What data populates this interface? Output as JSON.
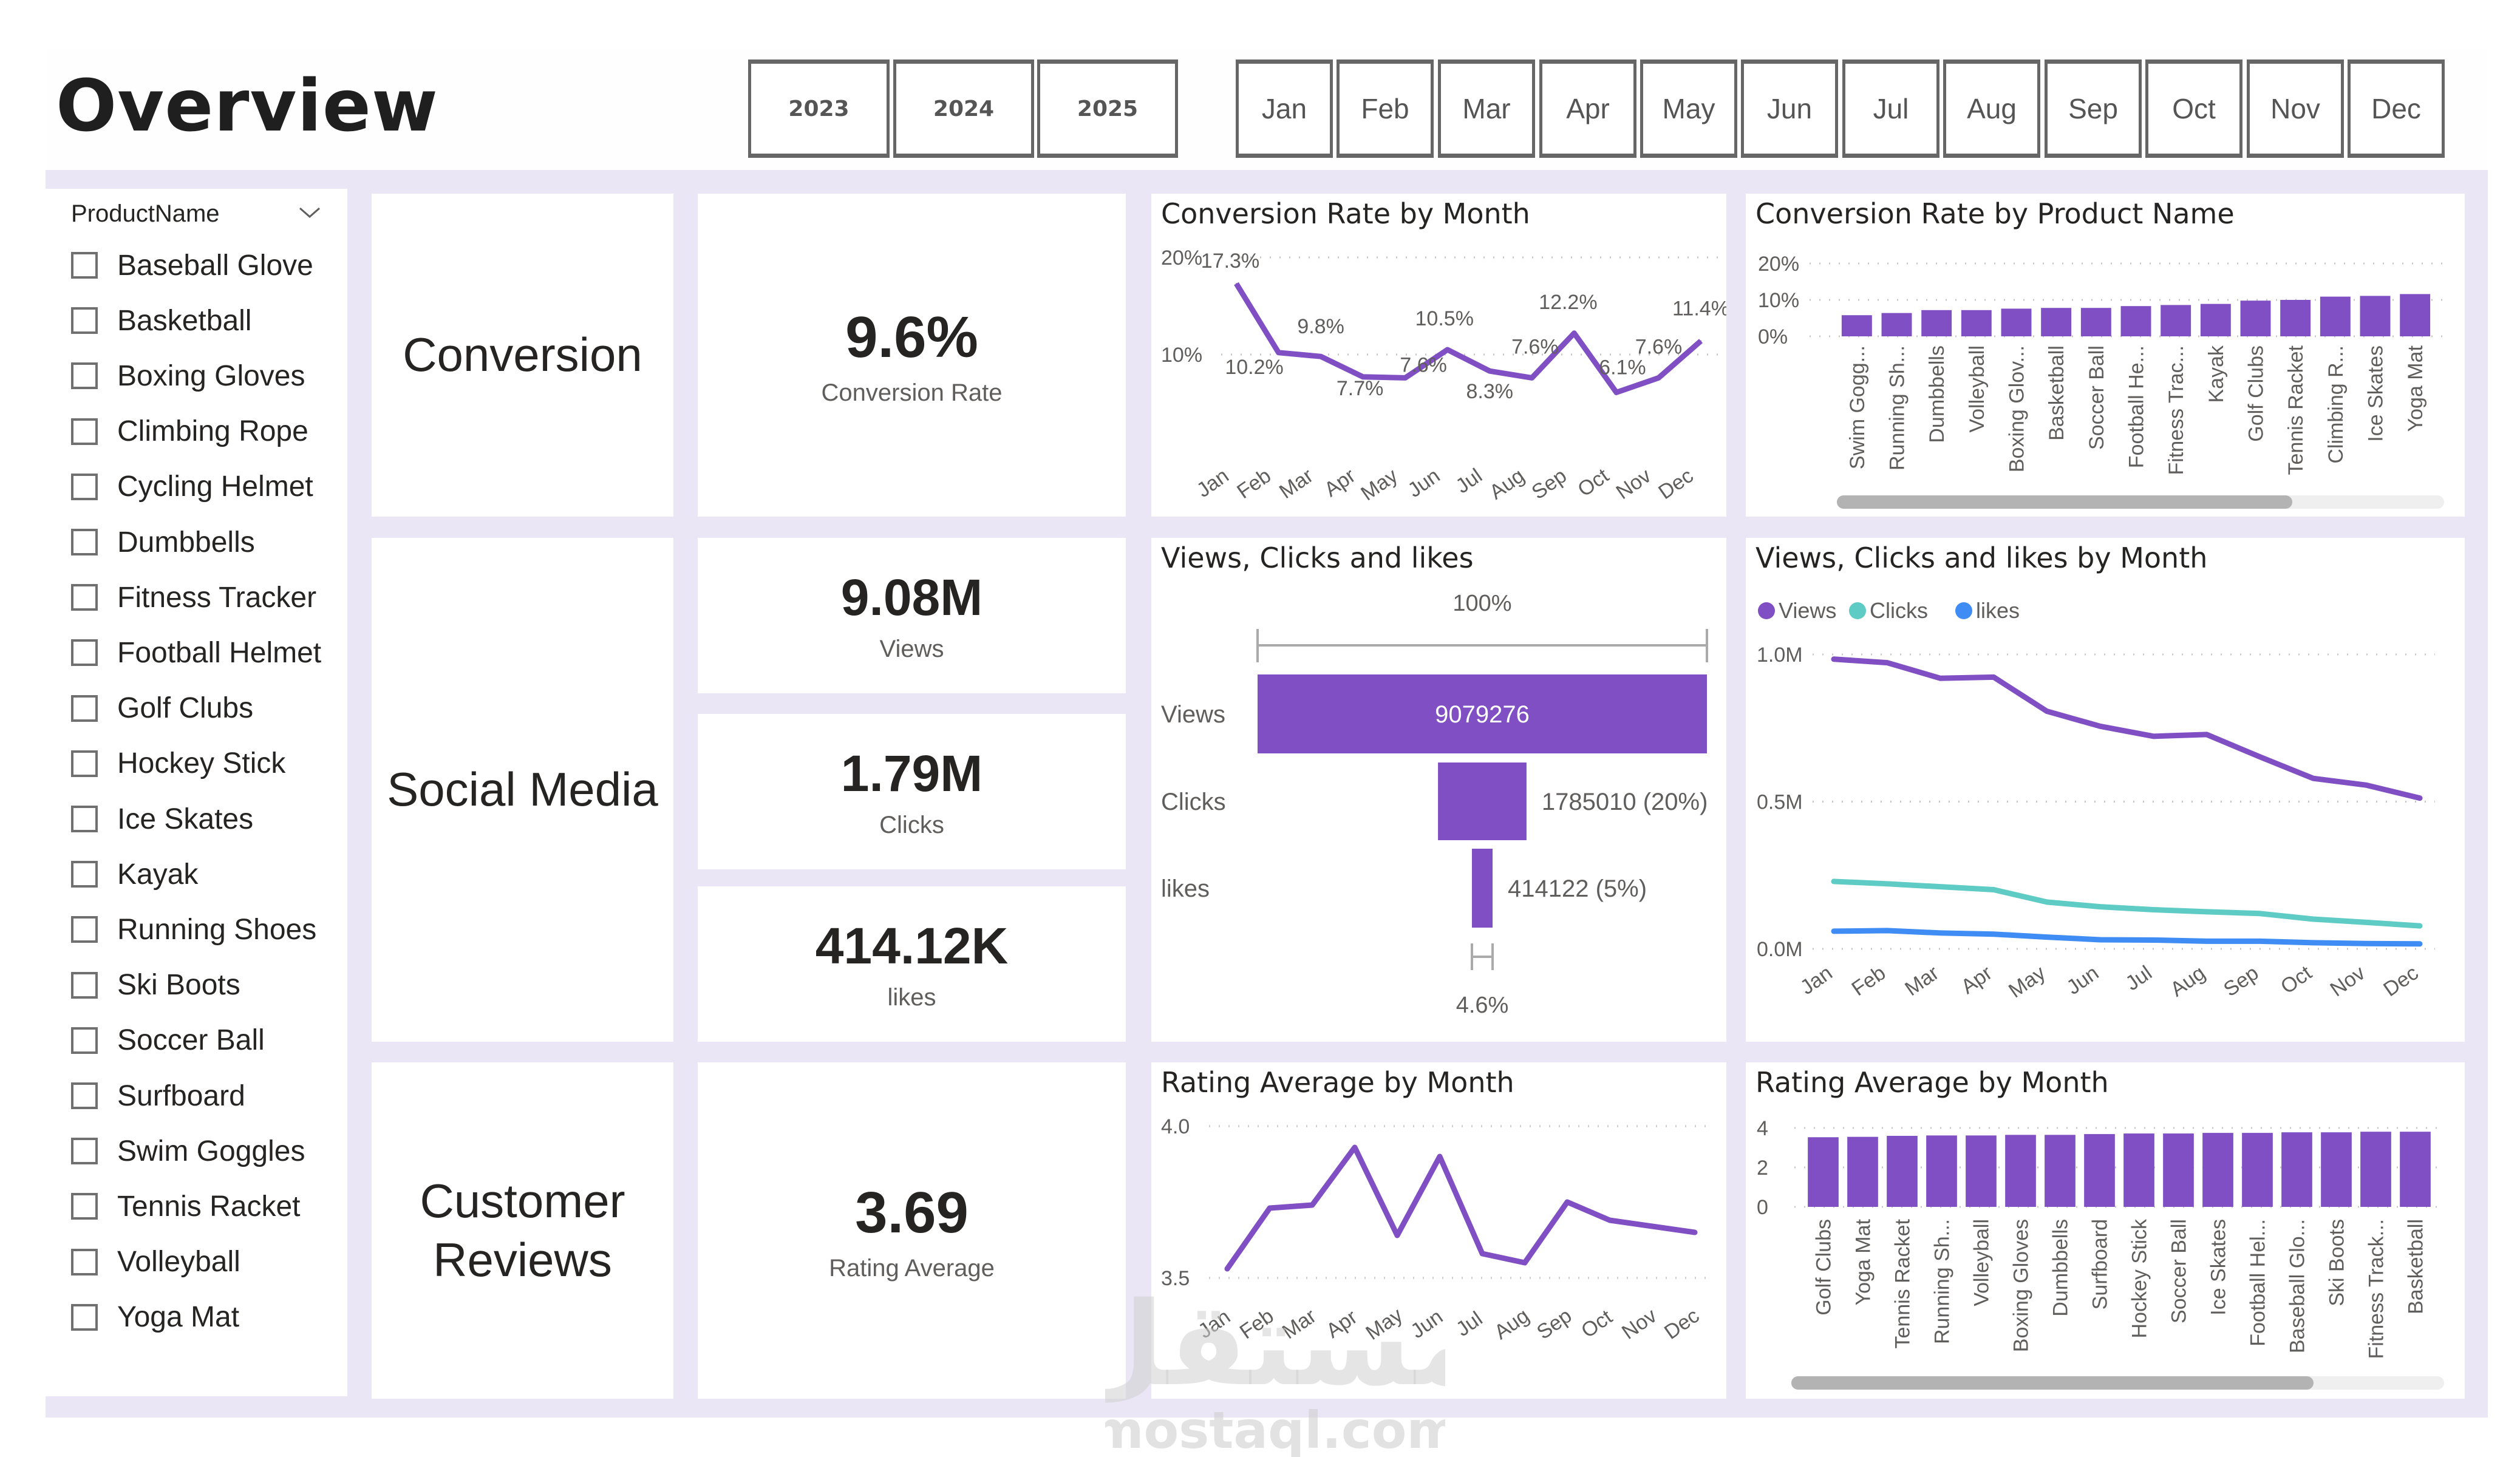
{
  "header": {
    "title": "Overview",
    "years": [
      "2023",
      "2024",
      "2025"
    ],
    "months": [
      "Jan",
      "Feb",
      "Mar",
      "Apr",
      "May",
      "Jun",
      "Jul",
      "Aug",
      "Sep",
      "Oct",
      "Nov",
      "Dec"
    ]
  },
  "slicer": {
    "title": "ProductName",
    "items": [
      "Baseball Glove",
      "Basketball",
      "Boxing Gloves",
      "Climbing Rope",
      "Cycling Helmet",
      "Dumbbells",
      "Fitness Tracker",
      "Football Helmet",
      "Golf Clubs",
      "Hockey Stick",
      "Ice Skates",
      "Kayak",
      "Running Shoes",
      "Ski Boots",
      "Soccer Ball",
      "Surfboard",
      "Swim Goggles",
      "Tennis Racket",
      "Volleyball",
      "Yoga Mat"
    ]
  },
  "sections": {
    "conversion": "Conversion",
    "social": "Social Media",
    "reviews_line1": "Customer",
    "reviews_line2": "Reviews"
  },
  "kpis": {
    "conversion_rate": {
      "value": "9.6%",
      "label": "Conversion Rate"
    },
    "views": {
      "value": "9.08M",
      "label": "Views"
    },
    "clicks": {
      "value": "1.79M",
      "label": "Clicks"
    },
    "likes": {
      "value": "414.12K",
      "label": "likes"
    },
    "rating": {
      "value": "3.69",
      "label": "Rating Average"
    }
  },
  "colors": {
    "accent": "#7f4fc3",
    "clicks": "#5ecbc4",
    "likes": "#3f8cf5",
    "canvas": "#ebe6f5"
  },
  "watermark": {
    "arabic": "مستقل",
    "latin": "mostaql.com"
  },
  "chart_data": [
    {
      "id": "conv_month",
      "type": "line",
      "title": "Conversion Rate by Month",
      "categories": [
        "Jan",
        "Feb",
        "Mar",
        "Apr",
        "May",
        "Jun",
        "Jul",
        "Aug",
        "Sep",
        "Oct",
        "Nov",
        "Dec"
      ],
      "values": [
        17.3,
        10.2,
        9.8,
        7.7,
        7.6,
        10.5,
        8.3,
        7.6,
        12.2,
        6.1,
        7.6,
        11.4
      ],
      "labels": [
        "17.3%",
        "10.2%",
        "9.8%",
        "7.7%",
        "7.6%",
        "10.5%",
        "8.3%",
        "7.6%",
        "12.2%",
        "6.1%",
        "7.6%",
        "11.4%"
      ],
      "yticks": [
        "10%",
        "20%"
      ],
      "ylim": [
        0,
        20
      ],
      "grid": true
    },
    {
      "id": "conv_product",
      "type": "bar",
      "title": "Conversion Rate by Product Name",
      "categories": [
        "Swim Gogg...",
        "Running Sh...",
        "Dumbbells",
        "Volleyball",
        "Boxing Glov...",
        "Basketball",
        "Soccer Ball",
        "Football He...",
        "Fitness Trac...",
        "Kayak",
        "Golf Clubs",
        "Tennis Racket",
        "Climbing R...",
        "Ice Skates",
        "Yoga Mat"
      ],
      "values": [
        5.8,
        6.4,
        7.2,
        7.2,
        7.6,
        7.8,
        7.8,
        8.3,
        8.6,
        8.9,
        9.8,
        10.0,
        10.9,
        11.1,
        11.6
      ],
      "yticks": [
        "0%",
        "10%",
        "20%"
      ],
      "ylim": [
        0,
        20
      ],
      "grid": true,
      "scroll_fraction": 0.75
    },
    {
      "id": "funnel",
      "type": "bar",
      "title": "Views, Clicks and likes",
      "categories": [
        "Views",
        "Clicks",
        "likes"
      ],
      "values": [
        9079276,
        1785010,
        414122
      ],
      "labels": [
        "9079276",
        "1785010 (20%)",
        "414122 (5%)"
      ],
      "top_label": "100%",
      "bottom_label": "4.6%"
    },
    {
      "id": "vcl_month",
      "type": "line",
      "title": "Views, Clicks and likes by Month",
      "categories": [
        "Jan",
        "Feb",
        "Mar",
        "Apr",
        "May",
        "Jun",
        "Jul",
        "Aug",
        "Sep",
        "Oct",
        "Nov",
        "Dec"
      ],
      "series": [
        {
          "name": "Views",
          "values": [
            0.984,
            0.972,
            0.919,
            0.923,
            0.807,
            0.756,
            0.722,
            0.728,
            0.652,
            0.579,
            0.556,
            0.512
          ]
        },
        {
          "name": "Clicks",
          "values": [
            0.229,
            0.221,
            0.211,
            0.201,
            0.159,
            0.143,
            0.133,
            0.126,
            0.12,
            0.101,
            0.09,
            0.078
          ]
        },
        {
          "name": "likes",
          "values": [
            0.06,
            0.062,
            0.054,
            0.05,
            0.04,
            0.031,
            0.03,
            0.026,
            0.026,
            0.021,
            0.018,
            0.017
          ]
        }
      ],
      "yticks": [
        "0.0M",
        "0.5M",
        "1.0M"
      ],
      "ylim": [
        0,
        1.0
      ],
      "ylabel_unit": "M",
      "legend": "top-left",
      "grid": true
    },
    {
      "id": "rating_month",
      "type": "line",
      "title": "Rating Average by Month",
      "categories": [
        "Jan",
        "Feb",
        "Mar",
        "Apr",
        "May",
        "Jun",
        "Jul",
        "Aug",
        "Sep",
        "Oct",
        "Nov",
        "Dec"
      ],
      "values": [
        3.53,
        3.73,
        3.74,
        3.93,
        3.64,
        3.9,
        3.58,
        3.55,
        3.75,
        3.69,
        3.67,
        3.65
      ],
      "yticks": [
        "3.5",
        "4.0"
      ],
      "ylim": [
        3.5,
        4.0
      ],
      "grid": true
    },
    {
      "id": "rating_product",
      "type": "bar",
      "title": "Rating Average by Month",
      "categories": [
        "Golf Clubs",
        "Yoga Mat",
        "Tennis Racket",
        "Running Sh...",
        "Volleyball",
        "Boxing Gloves",
        "Dumbbells",
        "Surfboard",
        "Hockey Stick",
        "Soccer Ball",
        "Ice Skates",
        "Football Hel...",
        "Baseball Glo...",
        "Ski Boots",
        "Fitness Track...",
        "Basketball"
      ],
      "values": [
        3.53,
        3.55,
        3.6,
        3.62,
        3.62,
        3.65,
        3.65,
        3.69,
        3.72,
        3.72,
        3.75,
        3.75,
        3.78,
        3.78,
        3.81,
        3.81
      ],
      "yticks": [
        "0",
        "2",
        "4"
      ],
      "ylim": [
        0,
        4
      ],
      "grid": true,
      "scroll_fraction": 0.8
    }
  ]
}
